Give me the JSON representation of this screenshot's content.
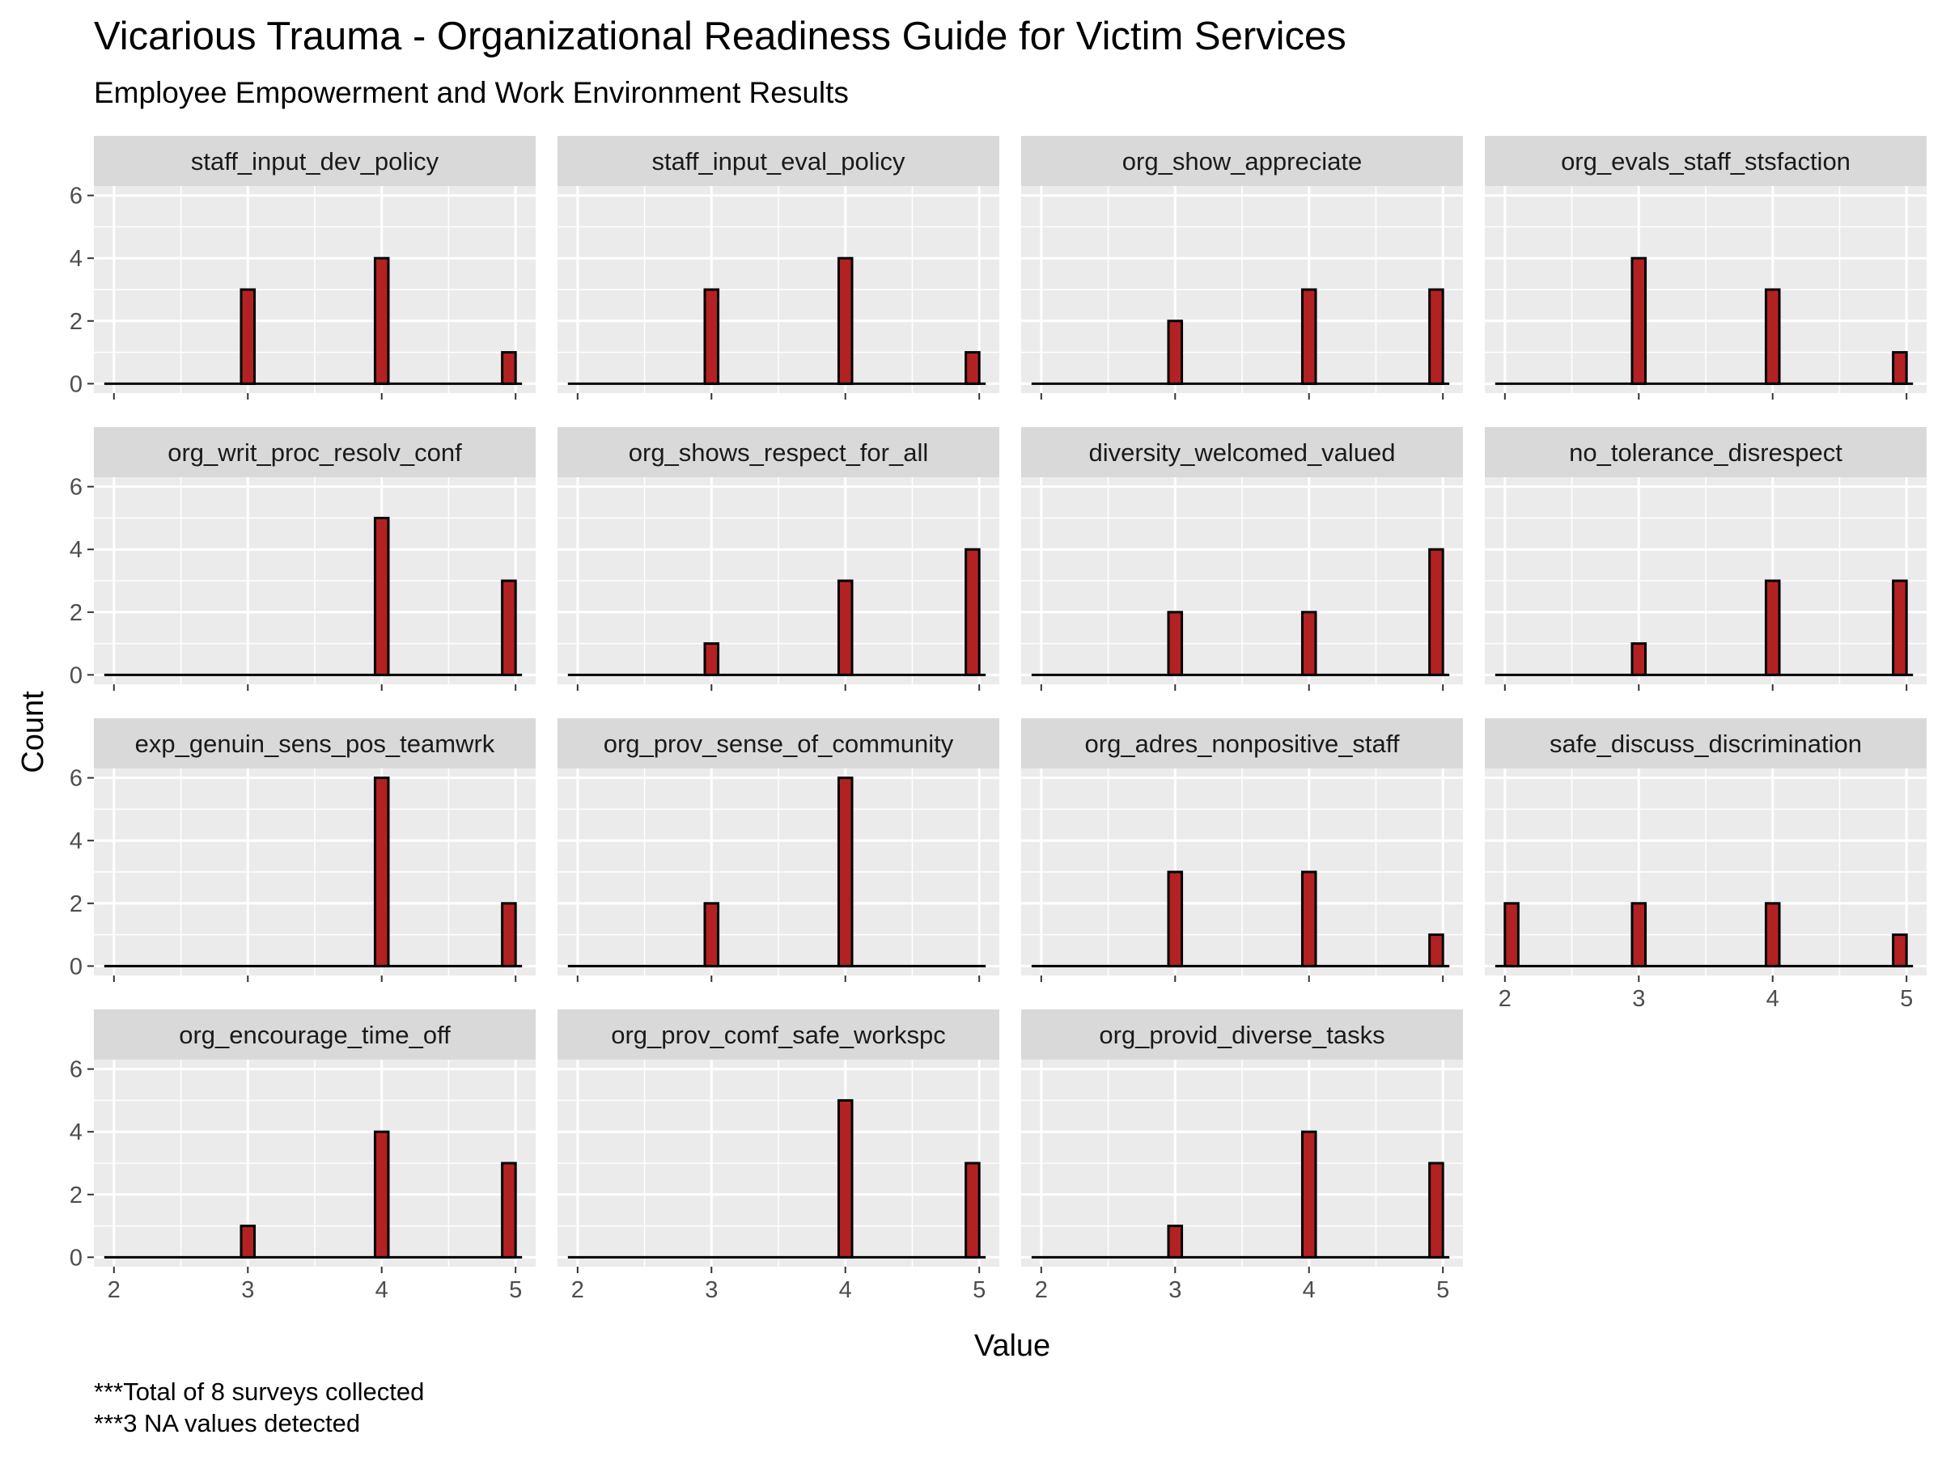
{
  "chart_data": {
    "type": "bar",
    "title": "Vicarious Trauma - Organizational Readiness Guide for Victim Services",
    "subtitle": "Employee Empowerment and Work Environment Results",
    "xlabel": "Value",
    "ylabel": "Count",
    "x_ticks": [
      2,
      3,
      4,
      5
    ],
    "y_ticks": [
      0,
      2,
      4,
      6
    ],
    "xlim": [
      2,
      5
    ],
    "ylim": [
      0,
      6
    ],
    "grid": true,
    "bar_fill": "#b22222",
    "bar_outline": "#000000",
    "panel_background": "#ebebeb",
    "strip_background": "#d9d9d9",
    "caption": [
      "***Total of 8 surveys collected",
      "***3 NA values detected"
    ],
    "facets": [
      {
        "name": "staff_input_dev_policy",
        "x": [
          2,
          3,
          4,
          5
        ],
        "values": [
          0,
          3,
          4,
          1
        ]
      },
      {
        "name": "staff_input_eval_policy",
        "x": [
          2,
          3,
          4,
          5
        ],
        "values": [
          0,
          3,
          4,
          1
        ]
      },
      {
        "name": "org_show_appreciate",
        "x": [
          2,
          3,
          4,
          5
        ],
        "values": [
          0,
          2,
          3,
          3
        ]
      },
      {
        "name": "org_evals_staff_stsfaction",
        "x": [
          2,
          3,
          4,
          5
        ],
        "values": [
          0,
          4,
          3,
          1
        ]
      },
      {
        "name": "org_writ_proc_resolv_conf",
        "x": [
          2,
          3,
          4,
          5
        ],
        "values": [
          0,
          0,
          5,
          3
        ]
      },
      {
        "name": "org_shows_respect_for_all",
        "x": [
          2,
          3,
          4,
          5
        ],
        "values": [
          0,
          1,
          3,
          4
        ]
      },
      {
        "name": "diversity_welcomed_valued",
        "x": [
          2,
          3,
          4,
          5
        ],
        "values": [
          0,
          2,
          2,
          4
        ]
      },
      {
        "name": "no_tolerance_disrespect",
        "x": [
          2,
          3,
          4,
          5
        ],
        "values": [
          0,
          1,
          3,
          3
        ]
      },
      {
        "name": "exp_genuin_sens_pos_teamwrk",
        "x": [
          2,
          3,
          4,
          5
        ],
        "values": [
          0,
          0,
          6,
          2
        ]
      },
      {
        "name": "org_prov_sense_of_community",
        "x": [
          2,
          3,
          4,
          5
        ],
        "values": [
          0,
          2,
          6,
          0
        ]
      },
      {
        "name": "org_adres_nonpositive_staff",
        "x": [
          2,
          3,
          4,
          5
        ],
        "values": [
          0,
          3,
          3,
          1
        ]
      },
      {
        "name": "safe_discuss_discrimination",
        "x": [
          2,
          3,
          4,
          5
        ],
        "values": [
          2,
          2,
          2,
          1
        ]
      },
      {
        "name": "org_encourage_time_off",
        "x": [
          2,
          3,
          4,
          5
        ],
        "values": [
          0,
          1,
          4,
          3
        ]
      },
      {
        "name": "org_prov_comf_safe_workspc",
        "x": [
          2,
          3,
          4,
          5
        ],
        "values": [
          0,
          0,
          5,
          3
        ]
      },
      {
        "name": "org_provid_diverse_tasks",
        "x": [
          2,
          3,
          4,
          5
        ],
        "values": [
          0,
          1,
          4,
          3
        ]
      }
    ]
  }
}
